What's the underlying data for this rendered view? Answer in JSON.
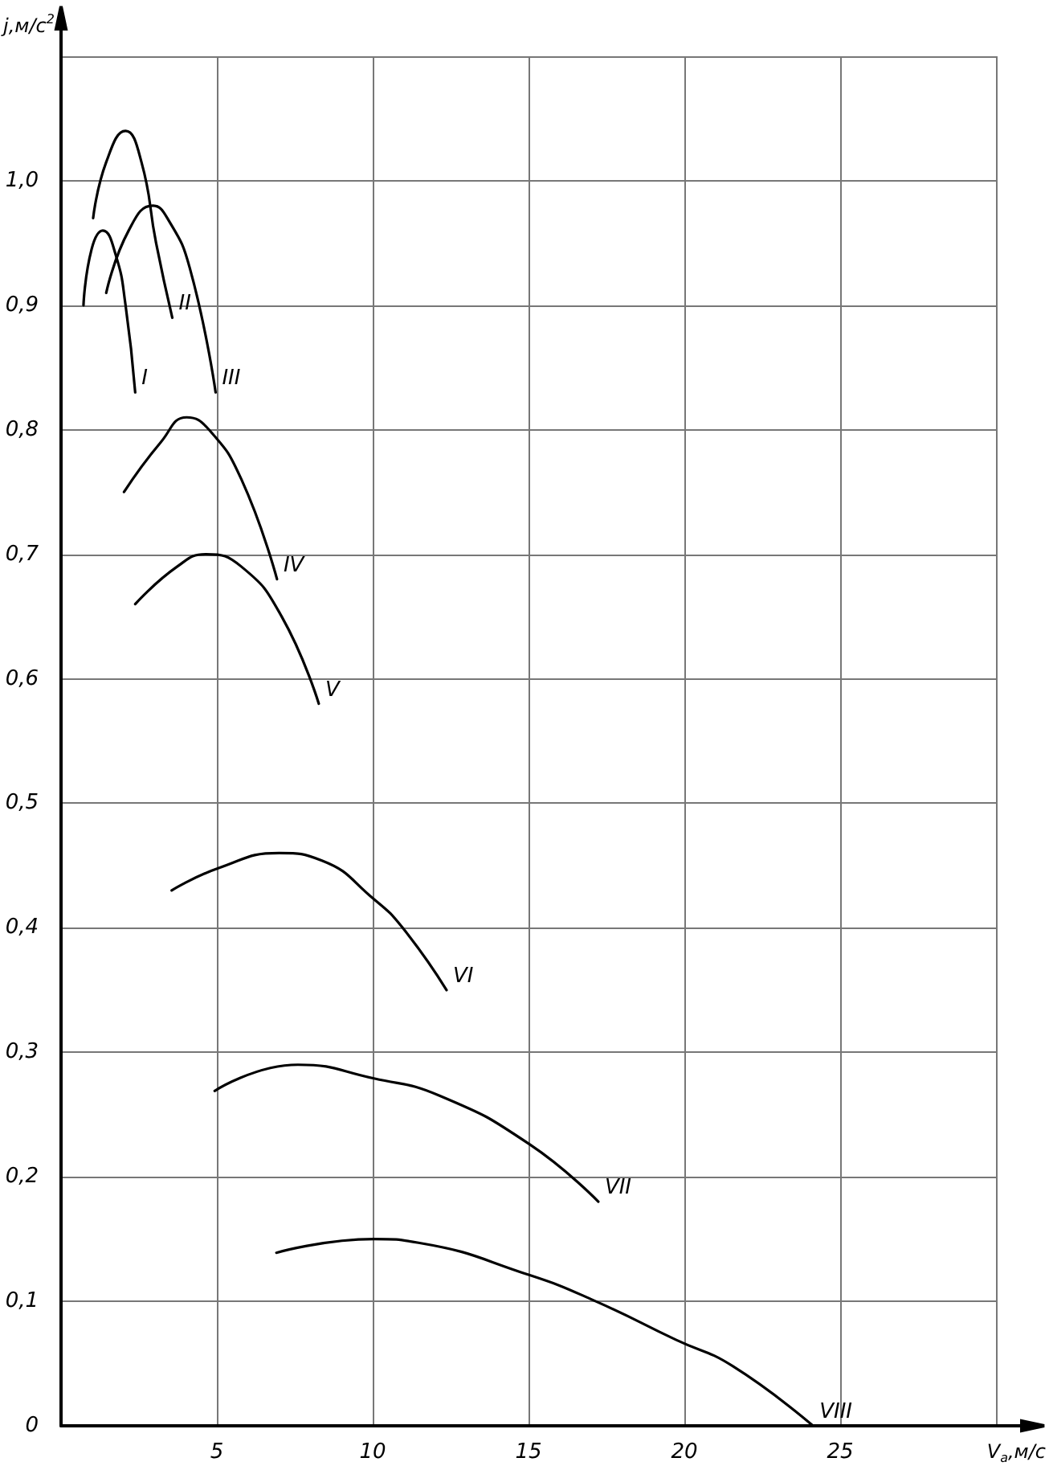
{
  "chart_data": {
    "type": "line",
    "xlabel": "V$_{a}$,м/с",
    "ylabel": "j,м/с$^{2}$",
    "xlim": [
      0,
      30
    ],
    "ylim": [
      0,
      1.1
    ],
    "xticks": [
      {
        "value": 0,
        "label": null
      },
      5,
      10,
      15,
      20,
      25,
      {
        "value": 30,
        "label": null
      }
    ],
    "yticks": [
      0,
      {
        "value": 0.1,
        "label": "0,1"
      },
      {
        "value": 0.2,
        "label": "0,2"
      },
      {
        "value": 0.3,
        "label": "0,3"
      },
      {
        "value": 0.4,
        "label": "0,4"
      },
      {
        "value": 0.5,
        "label": "0,5"
      },
      {
        "value": 0.6,
        "label": "0,6"
      },
      {
        "value": 0.7,
        "label": "0,7"
      },
      {
        "value": 0.8,
        "label": "0,8"
      },
      {
        "value": 0.9,
        "label": "0,9"
      },
      {
        "value": 1.0,
        "label": "1,0"
      },
      {
        "value": 1.1,
        "label": null
      }
    ],
    "grid": true,
    "marker": "none",
    "line_style": "solid",
    "series": [
      {
        "name": "I",
        "color": "#000000",
        "x": [
          0.72,
          0.98,
          1.34,
          1.76,
          2.07,
          2.38
        ],
        "values": [
          0.9,
          0.945,
          0.96,
          0.94,
          0.9,
          0.83
        ]
      },
      {
        "name": "II",
        "color": "#000000",
        "x": [
          1.03,
          1.45,
          2.07,
          2.58,
          3.05,
          3.57
        ],
        "values": [
          0.97,
          1.015,
          1.04,
          1.015,
          0.95,
          0.89
        ]
      },
      {
        "name": "III",
        "color": "#000000",
        "x": [
          1.45,
          2.17,
          2.95,
          3.41,
          4.13,
          4.96
        ],
        "values": [
          0.91,
          0.96,
          0.98,
          0.97,
          0.93,
          0.83
        ]
      },
      {
        "name": "IV",
        "color": "#000000",
        "x": [
          2.02,
          3.2,
          4.03,
          4.75,
          5.79,
          6.93
        ],
        "values": [
          0.75,
          0.79,
          0.81,
          0.8,
          0.76,
          0.68
        ]
      },
      {
        "name": "V",
        "color": "#000000",
        "x": [
          2.38,
          3.72,
          4.65,
          5.79,
          7.08,
          8.27
        ],
        "values": [
          0.66,
          0.69,
          0.7,
          0.69,
          0.65,
          0.58
        ]
      },
      {
        "name": "VI",
        "color": "#000000",
        "x": [
          3.55,
          5.06,
          7.0,
          8.37,
          10.04,
          10.96,
          12.37
        ],
        "values": [
          0.43,
          0.448,
          0.46,
          0.454,
          0.423,
          0.4,
          0.35
        ]
      },
      {
        "name": "VII",
        "color": "#000000",
        "x": [
          4.93,
          7.6,
          10.04,
          12.16,
          15.04,
          17.24
        ],
        "values": [
          0.269,
          0.29,
          0.279,
          0.265,
          0.226,
          0.18
        ]
      },
      {
        "name": "VIII",
        "color": "#000000",
        "x": [
          6.91,
          10.04,
          11.47,
          15.04,
          17.16,
          19.74,
          21.55,
          24.13
        ],
        "values": [
          0.139,
          0.15,
          0.147,
          0.121,
          0.1,
          0.069,
          0.048,
          0.0
        ]
      }
    ]
  }
}
